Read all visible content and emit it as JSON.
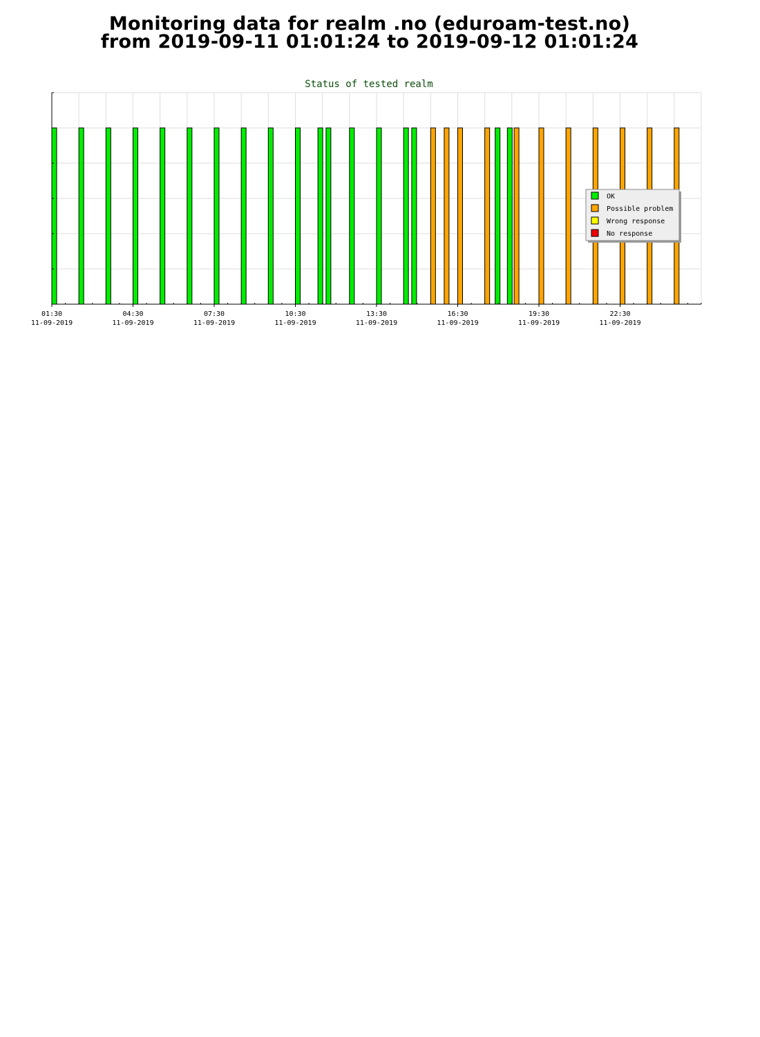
{
  "header": {
    "line1": "Monitoring data for realm .no  (eduroam-test.no)",
    "line2": "from 2019-09-11 01:01:24 to 2019-09-12 01:01:24"
  },
  "chart_data": {
    "type": "bar",
    "title": "Status of tested realm",
    "xlabel": "",
    "ylabel": "",
    "x_unit": "hours since 2019-09-11 00:00",
    "xlim": [
      "2019-09-11 01:30",
      "2019-09-12 01:00"
    ],
    "ylim": [
      0,
      6
    ],
    "grid": true,
    "legend_position": "right",
    "x_ticks": [
      {
        "time": "01:30",
        "date": "11-09-2019"
      },
      {
        "time": "04:30",
        "date": "11-09-2019"
      },
      {
        "time": "07:30",
        "date": "11-09-2019"
      },
      {
        "time": "10:30",
        "date": "11-09-2019"
      },
      {
        "time": "13:30",
        "date": "11-09-2019"
      },
      {
        "time": "16:30",
        "date": "11-09-2019"
      },
      {
        "time": "19:30",
        "date": "11-09-2019"
      },
      {
        "time": "22:30",
        "date": "11-09-2019"
      }
    ],
    "legend": [
      {
        "label": "OK",
        "color": "#00ee00"
      },
      {
        "label": "Possible problem",
        "color": "#ffa500"
      },
      {
        "label": "Wrong response",
        "color": "#ffff00"
      },
      {
        "label": "No response",
        "color": "#ee0000"
      }
    ],
    "bars": [
      {
        "time": "2019-09-11 01:30",
        "status": "OK",
        "value": 5
      },
      {
        "time": "2019-09-11 02:30",
        "status": "OK",
        "value": 5
      },
      {
        "time": "2019-09-11 03:30",
        "status": "OK",
        "value": 5
      },
      {
        "time": "2019-09-11 04:30",
        "status": "OK",
        "value": 5
      },
      {
        "time": "2019-09-11 05:30",
        "status": "OK",
        "value": 5
      },
      {
        "time": "2019-09-11 06:30",
        "status": "OK",
        "value": 5
      },
      {
        "time": "2019-09-11 07:30",
        "status": "OK",
        "value": 5
      },
      {
        "time": "2019-09-11 08:30",
        "status": "OK",
        "value": 5
      },
      {
        "time": "2019-09-11 09:30",
        "status": "OK",
        "value": 5
      },
      {
        "time": "2019-09-11 10:30",
        "status": "OK",
        "value": 5
      },
      {
        "time": "2019-09-11 11:20",
        "status": "OK",
        "value": 5
      },
      {
        "time": "2019-09-11 11:38",
        "status": "OK",
        "value": 5
      },
      {
        "time": "2019-09-11 12:30",
        "status": "OK",
        "value": 5
      },
      {
        "time": "2019-09-11 13:30",
        "status": "OK",
        "value": 5
      },
      {
        "time": "2019-09-11 14:30",
        "status": "OK",
        "value": 5
      },
      {
        "time": "2019-09-11 14:48",
        "status": "OK",
        "value": 5
      },
      {
        "time": "2019-09-11 15:30",
        "status": "Possible problem",
        "value": 5
      },
      {
        "time": "2019-09-11 16:00",
        "status": "Possible problem",
        "value": 5
      },
      {
        "time": "2019-09-11 16:30",
        "status": "Possible problem",
        "value": 5
      },
      {
        "time": "2019-09-11 17:30",
        "status": "Possible problem",
        "value": 5
      },
      {
        "time": "2019-09-11 17:53",
        "status": "OK",
        "value": 5
      },
      {
        "time": "2019-09-11 18:20",
        "status": "OK",
        "value": 5
      },
      {
        "time": "2019-09-11 18:35",
        "status": "Possible problem",
        "value": 5
      },
      {
        "time": "2019-09-11 19:30",
        "status": "Possible problem",
        "value": 5
      },
      {
        "time": "2019-09-11 20:30",
        "status": "Possible problem",
        "value": 5
      },
      {
        "time": "2019-09-11 21:30",
        "status": "Possible problem",
        "value": 5
      },
      {
        "time": "2019-09-11 22:30",
        "status": "Possible problem",
        "value": 5
      },
      {
        "time": "2019-09-11 23:30",
        "status": "Possible problem",
        "value": 5
      },
      {
        "time": "2019-09-12 00:30",
        "status": "Possible problem",
        "value": 5
      }
    ]
  }
}
